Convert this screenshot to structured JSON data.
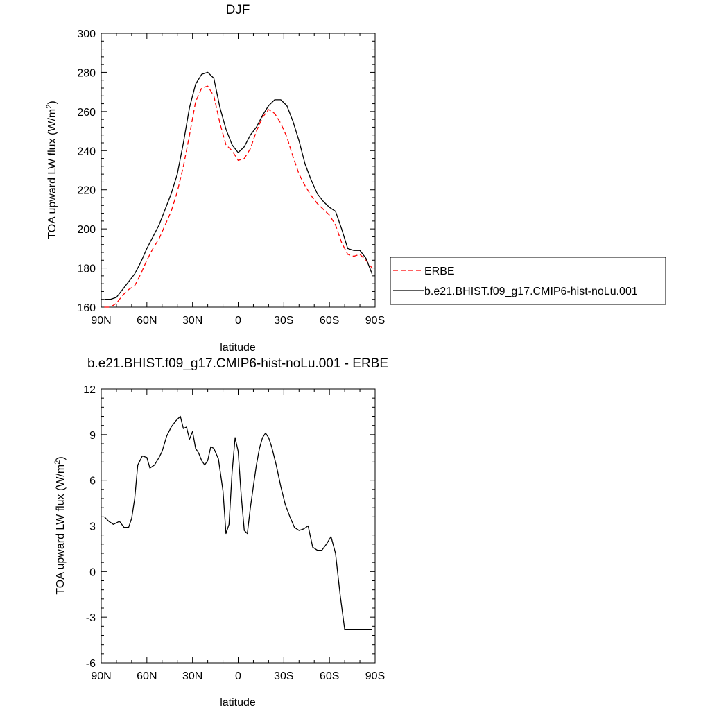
{
  "chart_data": [
    {
      "type": "line",
      "title": "DJF",
      "xlabel": "latitude",
      "ylabel_main": "TOA upward LW flux (W/m",
      "ylabel_sup": "2",
      "ylabel_close": ")",
      "xlim": [
        90,
        -90
      ],
      "ylim": [
        160,
        300
      ],
      "x_ticks": [
        90,
        60,
        30,
        0,
        -30,
        -60,
        -90
      ],
      "x_tick_labels": [
        "90N",
        "60N",
        "30N",
        "0",
        "30S",
        "60S",
        "90S"
      ],
      "y_ticks": [
        160,
        180,
        200,
        220,
        240,
        260,
        280,
        300
      ],
      "y_tick_labels": [
        "160",
        "180",
        "200",
        "220",
        "240",
        "260",
        "280",
        "300"
      ],
      "legend_position": "right",
      "series": [
        {
          "name": "ERBE",
          "color": "#ff0000",
          "dash": true,
          "x": [
            88,
            84,
            80,
            76,
            72,
            68,
            64,
            60,
            56,
            52,
            48,
            44,
            40,
            36,
            32,
            28,
            24,
            20,
            16,
            12,
            8,
            4,
            0,
            -4,
            -8,
            -12,
            -16,
            -20,
            -24,
            -28,
            -32,
            -36,
            -40,
            -44,
            -48,
            -52,
            -56,
            -60,
            -64,
            -68,
            -72,
            -76,
            -80,
            -84,
            -88
          ],
          "values": [
            160,
            160,
            162,
            166,
            169,
            171,
            177,
            184,
            190,
            195,
            202,
            209,
            219,
            232,
            248,
            265,
            272,
            273,
            268,
            254,
            243,
            240,
            235,
            236,
            241,
            250,
            257,
            261,
            259,
            254,
            247,
            237,
            228,
            222,
            217,
            213,
            210,
            207,
            202,
            193,
            187,
            186,
            187,
            184,
            180
          ]
        },
        {
          "name": "b.e21.BHIST.f09_g17.CMIP6-hist-noLu.001",
          "color": "#000000",
          "dash": false,
          "x": [
            88,
            84,
            80,
            76,
            72,
            68,
            64,
            60,
            56,
            52,
            48,
            44,
            40,
            36,
            32,
            28,
            24,
            20,
            16,
            12,
            8,
            4,
            0,
            -4,
            -8,
            -12,
            -16,
            -20,
            -24,
            -28,
            -32,
            -36,
            -40,
            -44,
            -48,
            -52,
            -56,
            -60,
            -64,
            -68,
            -72,
            -76,
            -80,
            -84,
            -88
          ],
          "values": [
            164,
            164,
            165,
            169,
            173,
            177,
            183,
            190,
            196,
            202,
            210,
            218,
            228,
            244,
            262,
            274,
            279,
            280,
            277,
            262,
            251,
            243,
            239,
            242,
            248,
            252,
            258,
            263,
            266,
            266,
            263,
            255,
            245,
            233,
            225,
            218,
            214,
            211,
            209,
            200,
            190,
            189,
            189,
            185,
            177
          ]
        }
      ]
    },
    {
      "type": "line",
      "title": "b.e21.BHIST.f09_g17.CMIP6-hist-noLu.001 - ERBE",
      "xlabel": "latitude",
      "ylabel_main": "TOA upward LW flux (W/m",
      "ylabel_sup": "2",
      "ylabel_close": ")",
      "xlim": [
        90,
        -90
      ],
      "ylim": [
        -6,
        12
      ],
      "x_ticks": [
        90,
        60,
        30,
        0,
        -30,
        -60,
        -90
      ],
      "x_tick_labels": [
        "90N",
        "60N",
        "30N",
        "0",
        "30S",
        "60S",
        "90S"
      ],
      "y_ticks": [
        -6,
        -3,
        0,
        3,
        6,
        9,
        12
      ],
      "y_tick_labels": [
        "-6",
        "-3",
        "0",
        "3",
        "6",
        "9",
        "12"
      ],
      "series": [
        {
          "color": "#000000",
          "dash": false,
          "x": [
            88,
            85,
            82,
            80,
            78,
            75,
            72,
            70,
            68,
            66,
            63,
            60,
            58,
            55,
            52,
            50,
            47,
            44,
            41,
            38,
            36,
            34,
            32,
            30,
            28,
            26,
            24,
            22,
            20,
            18,
            16,
            13,
            10,
            8,
            6,
            4,
            2,
            0,
            -2,
            -4,
            -6,
            -8,
            -10,
            -12,
            -14,
            -16,
            -18,
            -20,
            -22,
            -25,
            -28,
            -31,
            -34,
            -37,
            -40,
            -43,
            -46,
            -49,
            -52,
            -55,
            -58,
            -61,
            -64,
            -67,
            -70,
            -73,
            -76,
            -79,
            -82,
            -84,
            -86,
            -88
          ],
          "values": [
            3.6,
            3.3,
            3.1,
            3.2,
            3.3,
            2.9,
            2.9,
            3.5,
            4.8,
            7.0,
            7.6,
            7.5,
            6.8,
            7.0,
            7.5,
            7.9,
            8.9,
            9.5,
            9.9,
            10.2,
            9.4,
            9.5,
            8.7,
            9.2,
            8.1,
            7.8,
            7.3,
            7.0,
            7.3,
            8.2,
            8.1,
            7.4,
            5.3,
            2.5,
            3.1,
            6.5,
            8.8,
            7.9,
            5.0,
            2.7,
            2.5,
            4.2,
            5.6,
            7.0,
            8.1,
            8.8,
            9.1,
            8.8,
            8.2,
            7.0,
            5.6,
            4.4,
            3.6,
            2.9,
            2.7,
            2.8,
            3.0,
            1.6,
            1.4,
            1.4,
            1.8,
            2.3,
            1.2,
            -1.5,
            -3.8,
            -3.8,
            -3.8,
            -3.8,
            -3.8,
            -3.8,
            -3.8,
            -3.8
          ],
          "values_note": ""
        }
      ]
    }
  ]
}
